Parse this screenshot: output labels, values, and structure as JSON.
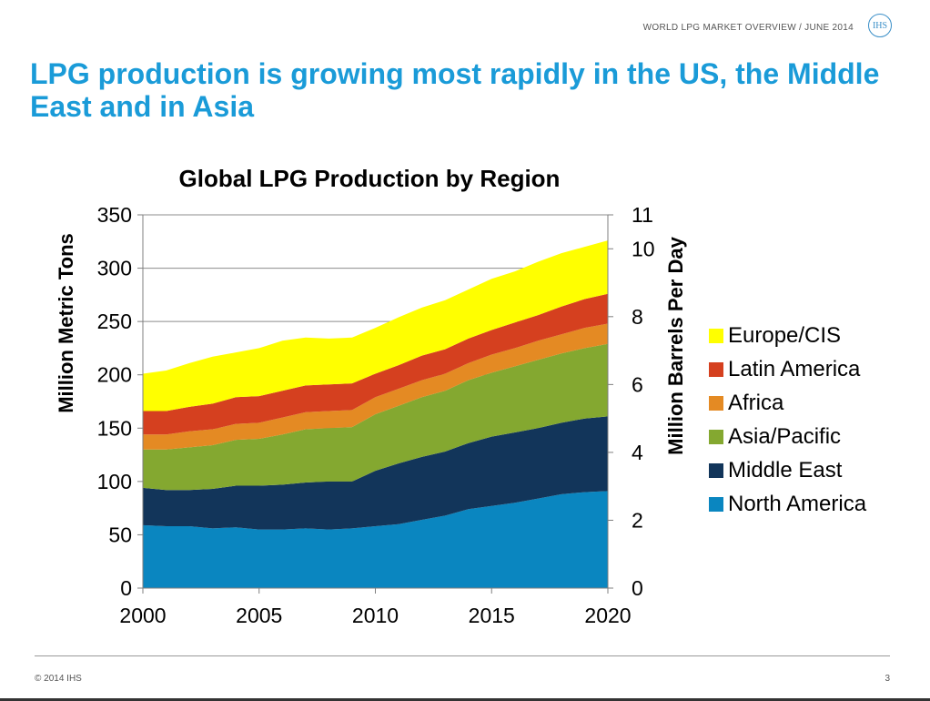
{
  "header": {
    "report_title": "WORLD LPG MARKET OVERVIEW / JUNE 2014",
    "logo_text": "IHS"
  },
  "slide": {
    "title": "LPG production is growing most rapidly in the US, the Middle East and in Asia"
  },
  "footer": {
    "copyright": "© 2014 IHS",
    "page_number": "3"
  },
  "chart_data": {
    "type": "area",
    "stacked": true,
    "title": "Global LPG Production by Region",
    "ylabel": "Million Metric Tons",
    "y2label": "Million Barrels Per Day",
    "xlim": [
      2000,
      2020
    ],
    "ylim": [
      0,
      350
    ],
    "y2lim": [
      0,
      11
    ],
    "x_ticks": [
      "2000",
      "2005",
      "2010",
      "2015",
      "2020"
    ],
    "y_ticks": [
      "0",
      "50",
      "100",
      "150",
      "200",
      "250",
      "300",
      "350"
    ],
    "y2_ticks": [
      "0",
      "2",
      "4",
      "6",
      "8",
      "10",
      "11"
    ],
    "grid": true,
    "legend_position": "right",
    "x": [
      2000,
      2001,
      2002,
      2003,
      2004,
      2005,
      2006,
      2007,
      2008,
      2009,
      2010,
      2011,
      2012,
      2013,
      2014,
      2015,
      2016,
      2017,
      2018,
      2019,
      2020
    ],
    "series": [
      {
        "name": "North America",
        "color": "#0a86c0",
        "values": [
          59,
          58,
          58,
          56,
          57,
          55,
          55,
          56,
          55,
          56,
          58,
          60,
          64,
          68,
          74,
          77,
          80,
          84,
          88,
          90,
          91
        ]
      },
      {
        "name": "Middle East",
        "color": "#12355a",
        "values": [
          35,
          34,
          34,
          37,
          39,
          41,
          42,
          43,
          45,
          44,
          52,
          57,
          59,
          60,
          62,
          65,
          66,
          66,
          67,
          69,
          70
        ]
      },
      {
        "name": "Asia/Pacific",
        "color": "#84a830",
        "values": [
          36,
          38,
          40,
          41,
          43,
          44,
          47,
          50,
          50,
          51,
          53,
          54,
          56,
          57,
          59,
          60,
          62,
          64,
          65,
          66,
          68
        ]
      },
      {
        "name": "Africa",
        "color": "#e48a23",
        "values": [
          14,
          14,
          15,
          15,
          15,
          15,
          16,
          16,
          16,
          16,
          16,
          16,
          16,
          16,
          16,
          17,
          17,
          18,
          18,
          19,
          19
        ]
      },
      {
        "name": "Latin America",
        "color": "#d5401f",
        "values": [
          22,
          22,
          23,
          24,
          25,
          25,
          25,
          25,
          25,
          25,
          22,
          22,
          23,
          23,
          23,
          23,
          24,
          24,
          26,
          27,
          28
        ]
      },
      {
        "name": "Europe/CIS",
        "color": "#ffff00",
        "values": [
          35,
          38,
          41,
          44,
          42,
          45,
          47,
          45,
          43,
          43,
          43,
          45,
          45,
          46,
          46,
          48,
          48,
          50,
          50,
          49,
          50
        ]
      }
    ]
  }
}
